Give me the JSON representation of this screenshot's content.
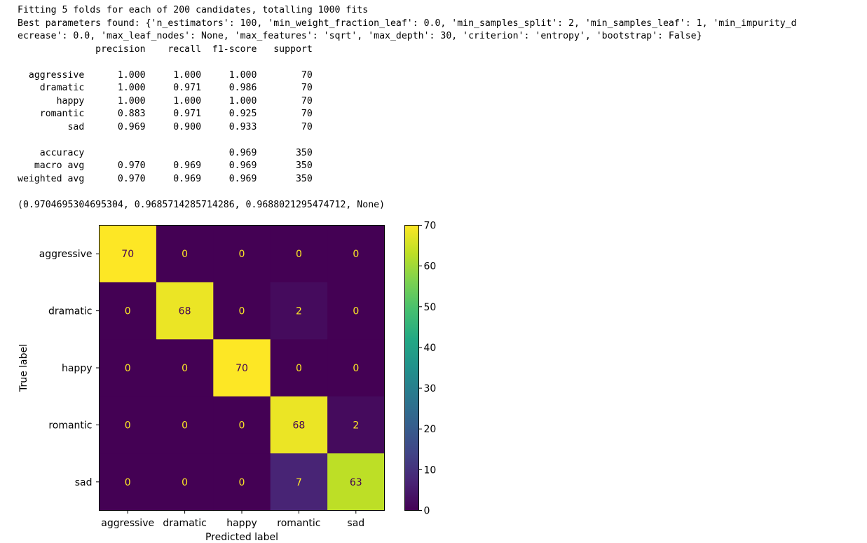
{
  "output": {
    "line_fitting": "Fitting 5 folds for each of 200 candidates, totalling 1000 fits",
    "line_best_1": "Best parameters found: {'n_estimators': 100, 'min_weight_fraction_leaf': 0.0, 'min_samples_split': 2, 'min_samples_leaf': 1, 'min_impurity_d",
    "line_best_2": "ecrease': 0.0, 'max_leaf_nodes': None, 'max_features': 'sqrt', 'max_depth': 30, 'criterion': 'entropy', 'bootstrap': False}",
    "report_header": "              precision    recall  f1-score   support",
    "report_rows": [
      "  aggressive      1.000     1.000     1.000        70",
      "    dramatic      1.000     0.971     0.986        70",
      "       happy      1.000     1.000     1.000        70",
      "    romantic      0.883     0.971     0.925        70",
      "         sad      0.969     0.900     0.933        70"
    ],
    "report_summary": [
      "    accuracy                          0.969       350",
      "   macro avg      0.970     0.969     0.969       350",
      "weighted avg      0.970     0.969     0.969       350"
    ],
    "tuple_line": "(0.9704695304695304, 0.9685714285714286, 0.9688021295474712, None)"
  },
  "chart_data": {
    "type": "heatmap",
    "labels": [
      "aggressive",
      "dramatic",
      "happy",
      "romantic",
      "sad"
    ],
    "matrix": [
      [
        70,
        0,
        0,
        0,
        0
      ],
      [
        0,
        68,
        0,
        2,
        0
      ],
      [
        0,
        0,
        70,
        0,
        0
      ],
      [
        0,
        0,
        0,
        68,
        2
      ],
      [
        0,
        0,
        0,
        7,
        63
      ]
    ],
    "xlabel": "Predicted label",
    "ylabel": "True label",
    "colormap": "viridis",
    "colorbar_ticks": [
      0,
      10,
      20,
      30,
      40,
      50,
      60,
      70
    ],
    "colorbar_range": [
      0,
      70
    ],
    "text_color_dark_cells": "#fde725",
    "text_color_bright_cells": "#440154"
  }
}
